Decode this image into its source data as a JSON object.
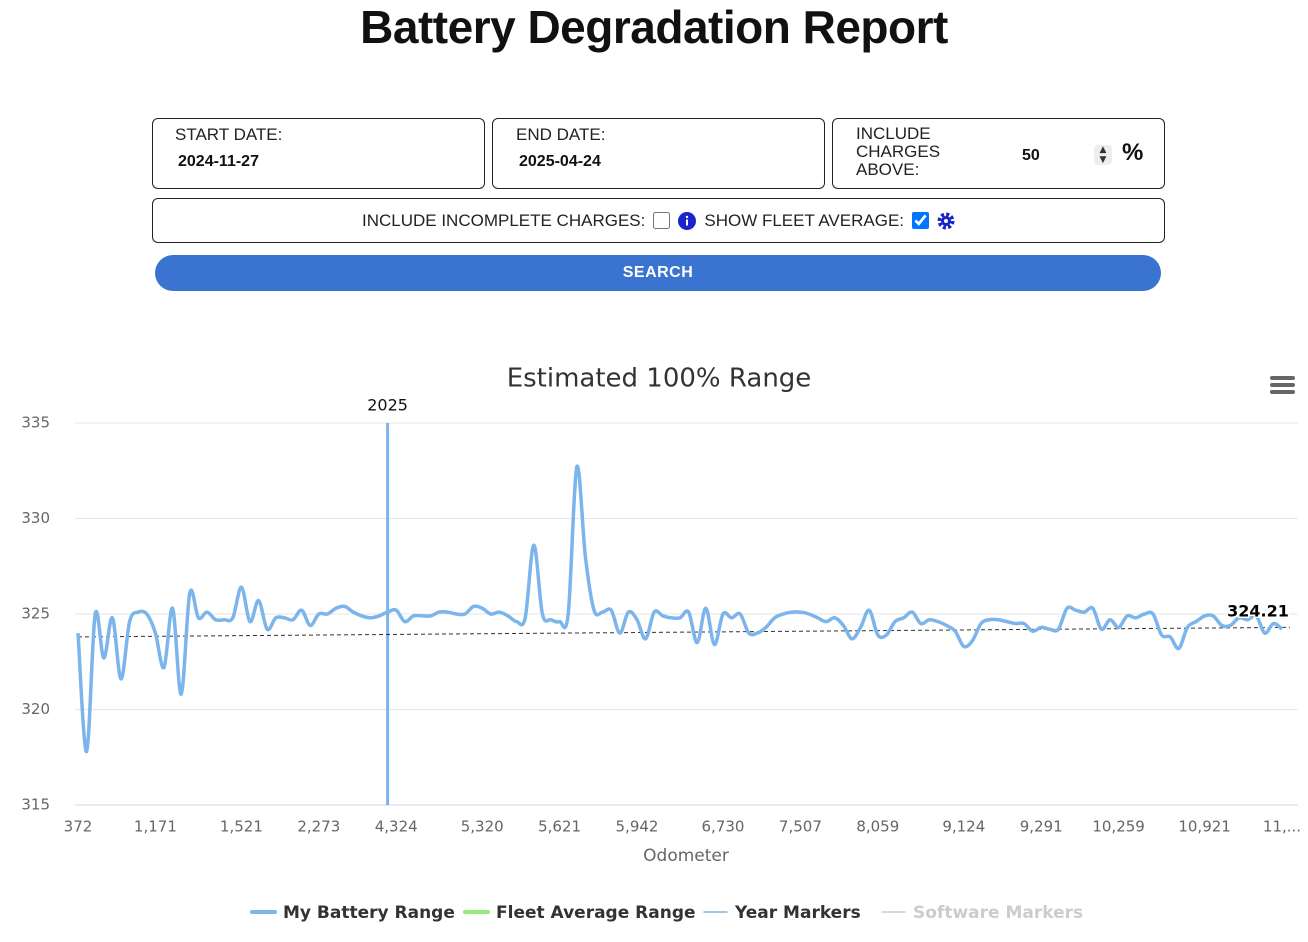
{
  "header": {
    "title": "Battery Degradation Report"
  },
  "form": {
    "start_date": {
      "label": "START DATE:",
      "value": "2024-11-27"
    },
    "end_date": {
      "label": "END DATE:",
      "value": "2025-04-24"
    },
    "charges_above": {
      "label": "INCLUDE CHARGES ABOVE:",
      "value": "50",
      "unit": "%"
    },
    "incomplete_charges": {
      "label": "INCLUDE INCOMPLETE CHARGES:",
      "checked": false
    },
    "fleet_average": {
      "label": "SHOW FLEET AVERAGE:",
      "checked": true
    },
    "search": "SEARCH"
  },
  "chart_data": {
    "type": "line",
    "title": "Estimated 100% Range",
    "x_label": "Odometer",
    "categories": [
      "372",
      null,
      null,
      null,
      null,
      null,
      null,
      null,
      null,
      "1,171",
      null,
      null,
      null,
      null,
      null,
      null,
      null,
      null,
      null,
      "1,521",
      null,
      null,
      null,
      null,
      null,
      null,
      null,
      null,
      "2,273",
      null,
      null,
      null,
      null,
      null,
      null,
      null,
      null,
      "4,324",
      null,
      null,
      null,
      null,
      null,
      null,
      null,
      null,
      null,
      "5,320",
      null,
      null,
      null,
      null,
      null,
      null,
      null,
      null,
      "5,621",
      null,
      null,
      null,
      null,
      null,
      null,
      null,
      null,
      "5,942",
      null,
      null,
      null,
      null,
      null,
      null,
      null,
      null,
      null,
      "6,730",
      null,
      null,
      null,
      null,
      null,
      null,
      null,
      null,
      "7,507",
      null,
      null,
      null,
      null,
      null,
      null,
      null,
      null,
      "8,059",
      null,
      null,
      null,
      null,
      null,
      null,
      null,
      null,
      null,
      "9,124",
      null,
      null,
      null,
      null,
      null,
      null,
      null,
      null,
      "9,291",
      null,
      null,
      null,
      null,
      null,
      null,
      null,
      null,
      "10,259",
      null,
      null,
      null,
      null,
      null,
      null,
      null,
      null,
      null,
      "10,921",
      null,
      null,
      null,
      null,
      null,
      null,
      null,
      null,
      "11,..."
    ],
    "series": [
      {
        "name": "My Battery Range",
        "color": "#7cb5ec",
        "values": [
          324,
          317.8,
          325,
          322.7,
          324.8,
          321.6,
          324.6,
          325.1,
          325,
          324,
          322.2,
          325.3,
          320.8,
          326.1,
          324.8,
          325.1,
          324.7,
          324.7,
          324.8,
          326.4,
          324.6,
          325.7,
          324.2,
          324.8,
          324.8,
          324.7,
          325.2,
          324.4,
          325,
          325,
          325.3,
          325.4,
          325.1,
          324.9,
          324.8,
          324.9,
          325.1,
          325.2,
          324.6,
          324.9,
          324.9,
          324.9,
          325.1,
          325.1,
          325,
          325,
          325.4,
          325.3,
          325,
          325.1,
          324.9,
          324.6,
          324.8,
          328.6,
          325,
          324.7,
          324.6,
          325,
          332.7,
          328,
          325.2,
          325.1,
          325.2,
          324,
          325.1,
          324.7,
          323.7,
          325.1,
          324.9,
          324.8,
          324.8,
          325.1,
          323.5,
          325.3,
          323.4,
          325,
          324.8,
          325,
          324,
          324,
          324.3,
          324.8,
          325,
          325.1,
          325.1,
          325,
          324.8,
          324.6,
          324.8,
          324.4,
          323.7,
          324.3,
          325.2,
          323.9,
          323.9,
          324.6,
          324.8,
          325.1,
          324.5,
          324.7,
          324.6,
          324.4,
          324.1,
          323.3,
          323.6,
          324.5,
          324.7,
          324.7,
          324.6,
          324.5,
          324.5,
          324.1,
          324.3,
          324.2,
          324.2,
          325.3,
          325.2,
          325.1,
          325.3,
          324.2,
          324.7,
          324.3,
          324.9,
          324.8,
          325,
          325,
          323.9,
          323.8,
          323.2,
          324.3,
          324.6,
          324.9,
          324.9,
          324.4,
          324.4,
          324.8,
          324.7,
          324.9,
          324,
          324.5,
          324.21
        ]
      }
    ],
    "end_label": "324.21",
    "trend_line": [
      323.8,
      324.3
    ],
    "year_markers": [
      {
        "label": "2025",
        "category_index": 36
      }
    ],
    "other_legend": [
      {
        "name": "Fleet Average Range",
        "color": "#90ed7d",
        "hidden": false,
        "thin": false
      },
      {
        "name": "Year Markers",
        "color": "#7cb5ec",
        "hidden": false,
        "thin": true
      },
      {
        "name": "Software Markers",
        "color": "#cccccc",
        "hidden": true,
        "thin": true
      }
    ],
    "ylim": [
      315,
      335
    ],
    "yticks": [
      315,
      320,
      325,
      330,
      335
    ],
    "grid": true
  }
}
